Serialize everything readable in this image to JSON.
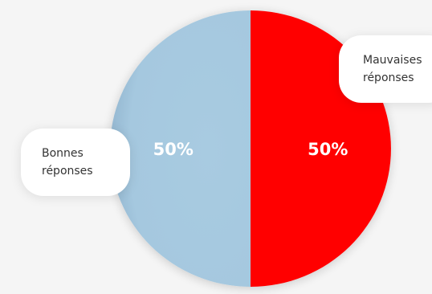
{
  "chart_data": {
    "type": "pie",
    "categories": [
      "Bonnes réponses",
      "Mauvaises réponses"
    ],
    "values": [
      50,
      50
    ],
    "value_labels": [
      "50%",
      "50%"
    ],
    "colors": [
      "#a8cbe1",
      "#ff0000"
    ],
    "legend_placement": "pill labels beside slices",
    "title": ""
  },
  "legend": {
    "good": "Bonnes réponses",
    "bad": "Mauvaises réponses"
  }
}
